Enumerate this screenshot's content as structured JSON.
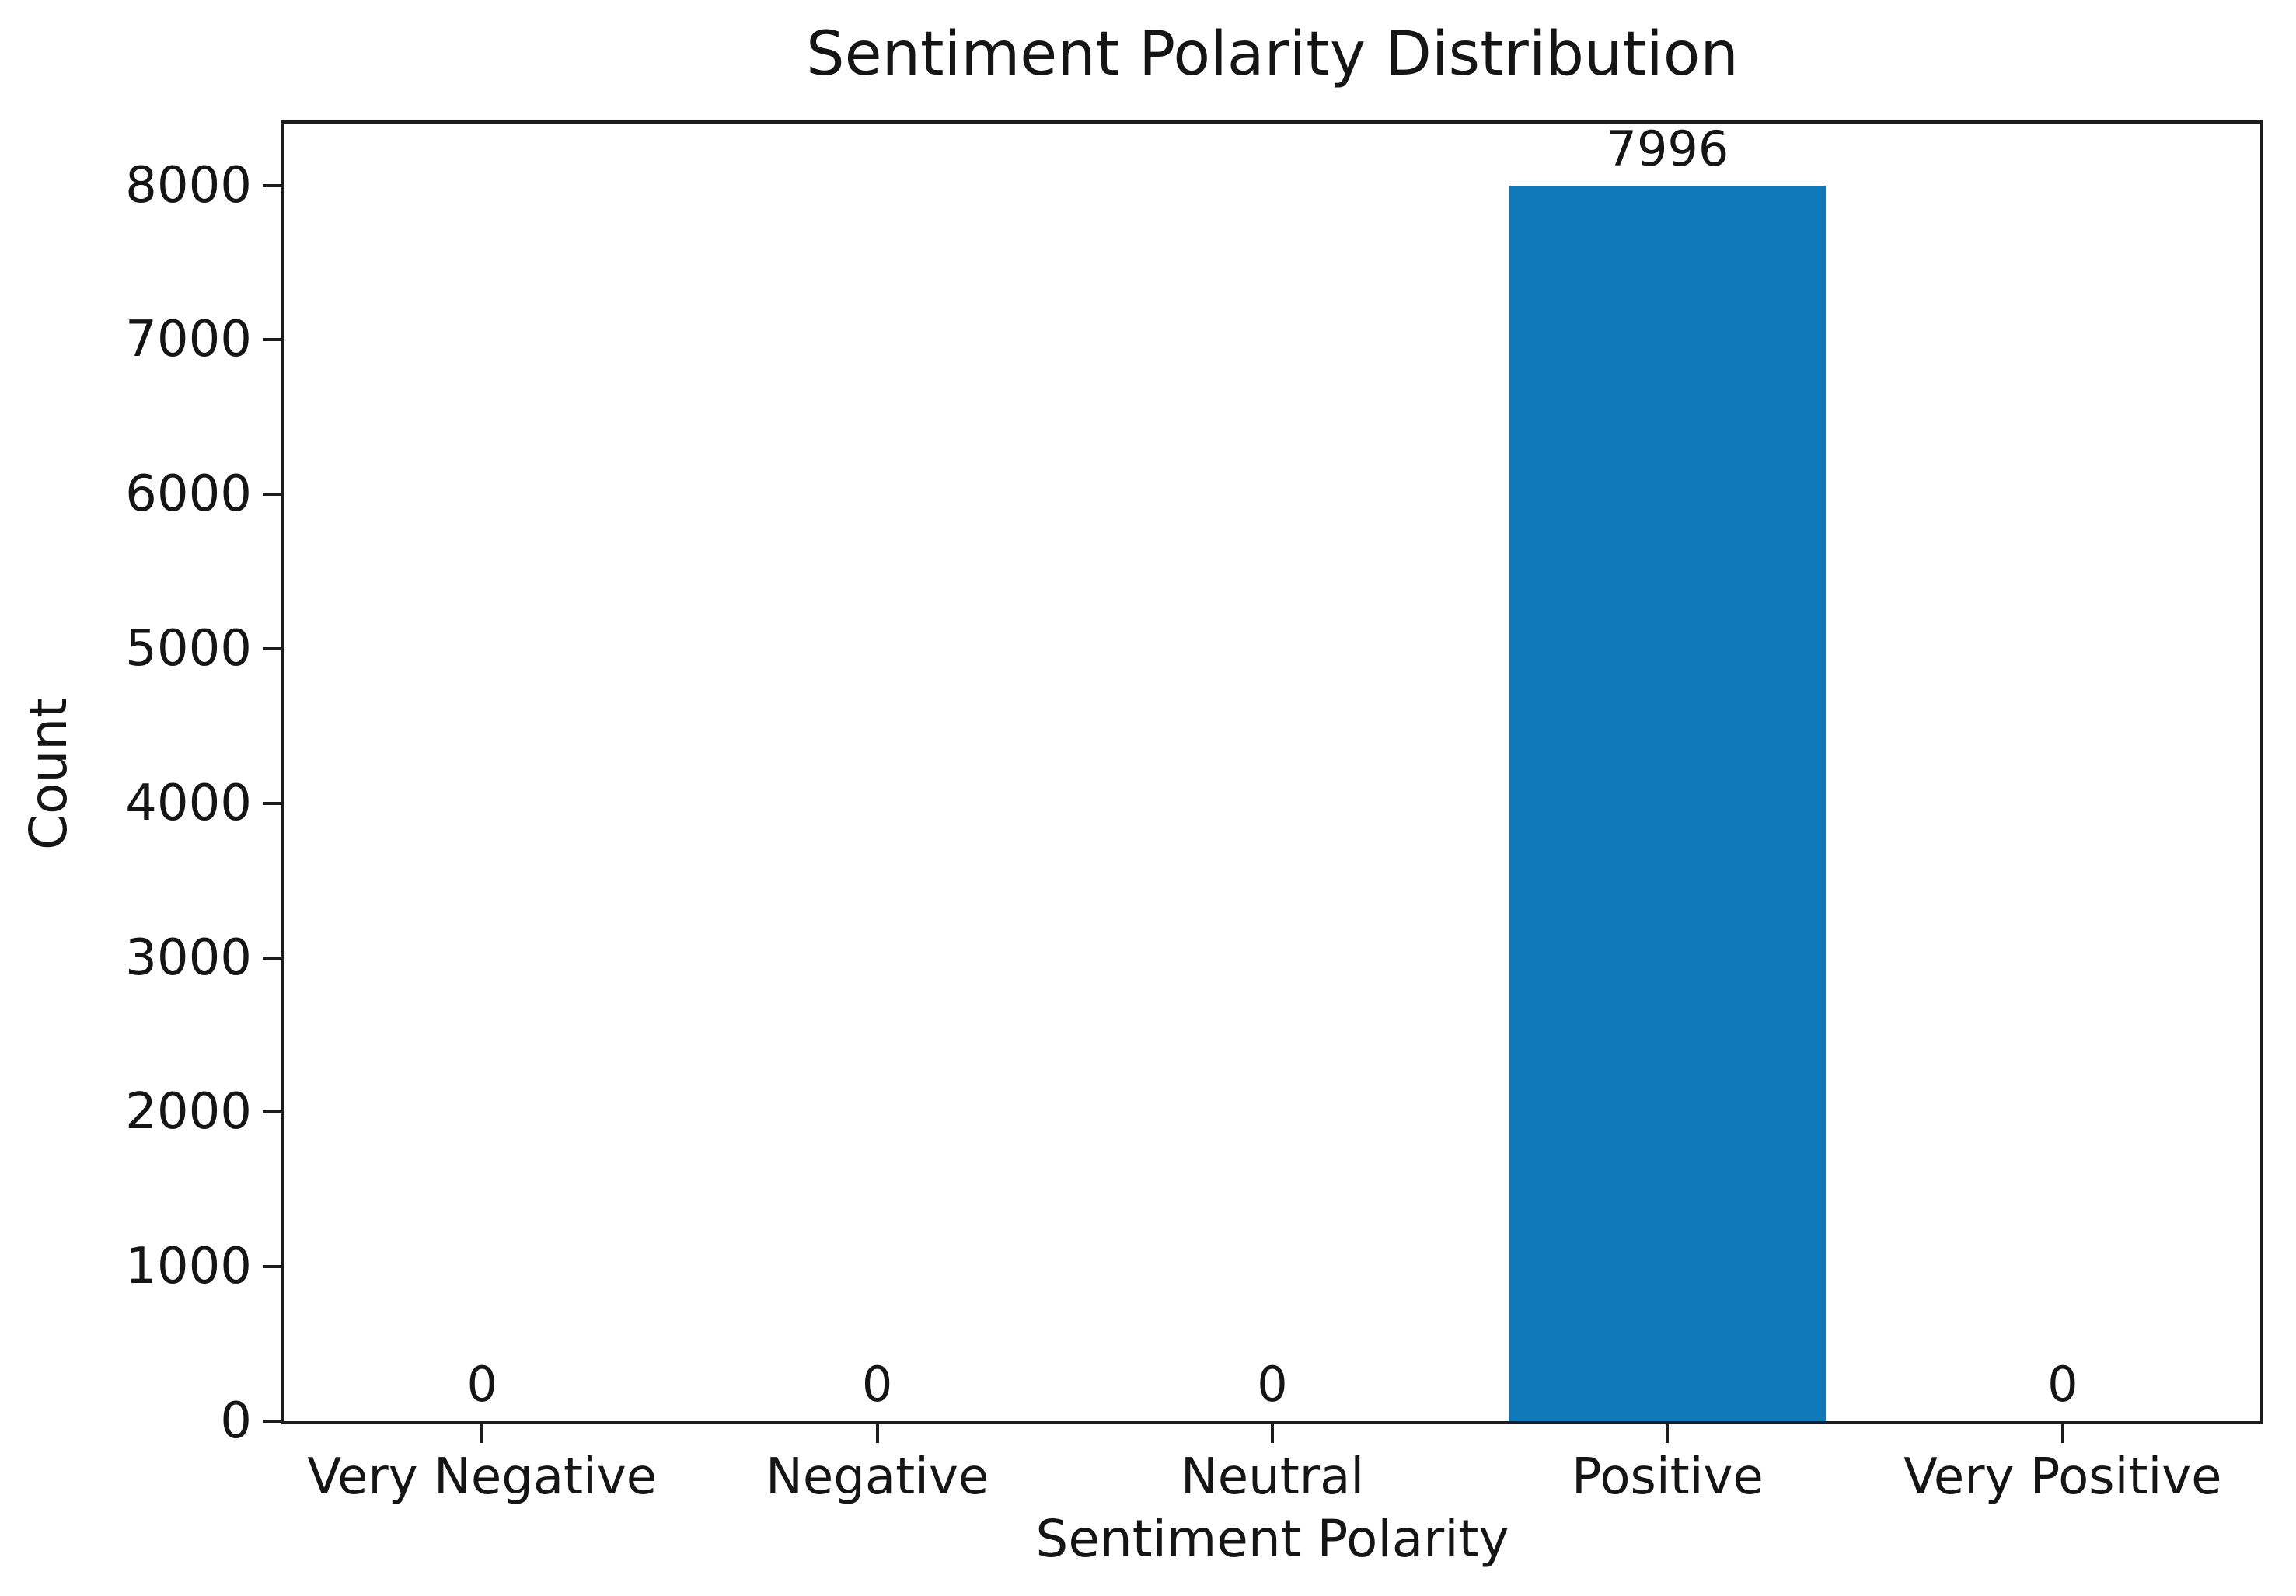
{
  "chart_data": {
    "type": "bar",
    "title": "Sentiment Polarity Distribution",
    "xlabel": "Sentiment Polarity",
    "ylabel": "Count",
    "categories": [
      "Very Negative",
      "Negative",
      "Neutral",
      "Positive",
      "Very Positive"
    ],
    "values": [
      0,
      0,
      0,
      7996,
      0
    ],
    "bar_labels": [
      "0",
      "0",
      "0",
      "7996",
      "0"
    ],
    "yticks": [
      0,
      1000,
      2000,
      3000,
      4000,
      5000,
      6000,
      7000,
      8000
    ],
    "ylim": [
      0,
      8400
    ],
    "bar_color": "#0f78b8",
    "bar_width_fraction": 0.8,
    "grid": false,
    "legend": "none",
    "background_color": "#ffffff",
    "text_color": "#151515"
  }
}
